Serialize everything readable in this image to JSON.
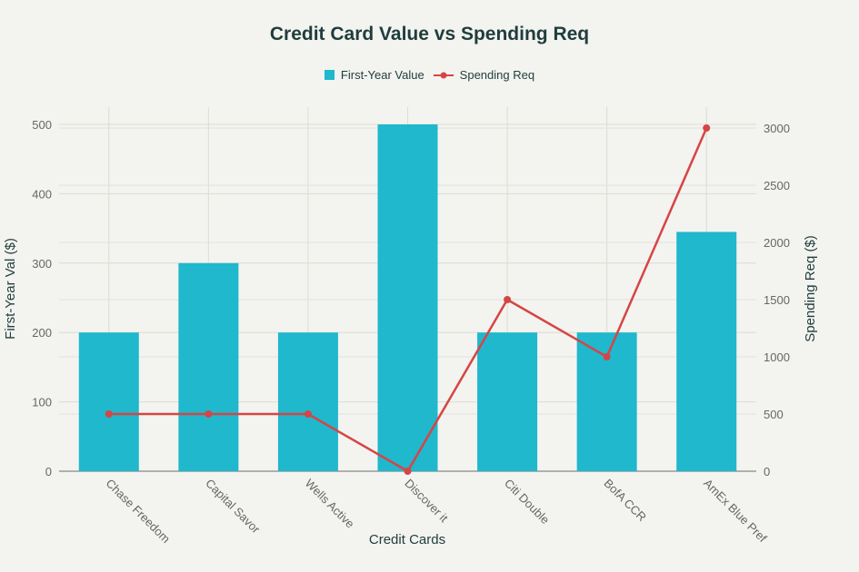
{
  "chart_data": {
    "type": "bar+line",
    "title": "Credit Card Value vs Spending Req",
    "xlabel": "Credit Cards",
    "ylabel": "First-Year Val ($)",
    "y2label": "Spending Req ($)",
    "categories": [
      "Chase Freedom",
      "Capital Savor",
      "Wells Active",
      "Discover it",
      "Citi Double",
      "BofA CCR",
      "AmEx Blue Pref"
    ],
    "series": [
      {
        "name": "First-Year Value",
        "type": "bar",
        "axis": "left",
        "color": "#1fb8cd",
        "values": [
          200,
          300,
          200,
          500,
          200,
          200,
          345
        ]
      },
      {
        "name": "Spending Req",
        "type": "line",
        "axis": "right",
        "color": "#d64545",
        "values": [
          500,
          500,
          500,
          0,
          1500,
          1000,
          3000
        ]
      }
    ],
    "ylim": [
      0,
      500
    ],
    "y2lim": [
      0,
      3000
    ],
    "yticks": [
      0,
      100,
      200,
      300,
      400,
      500
    ],
    "y2ticks": [
      0,
      500,
      1000,
      1500,
      2000,
      2500,
      3000
    ],
    "grid": true,
    "legend_position": "top-center"
  }
}
